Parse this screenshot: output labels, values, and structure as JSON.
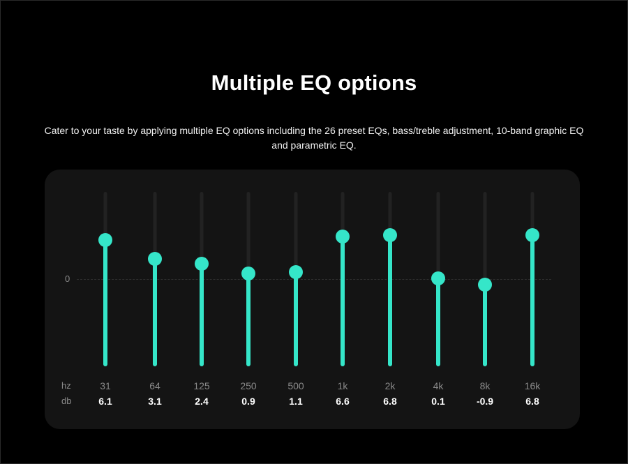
{
  "page": {
    "title": "Multiple EQ options",
    "subtitle": "Cater to your taste by applying multiple EQ options including the 26 preset EQs, bass/treble adjustment, 10-band graphic EQ and parametric EQ."
  },
  "eq": {
    "zero_label": "0",
    "hz_row_label": "hz",
    "db_row_label": "db",
    "accent_color": "#35e6c9",
    "bands": [
      {
        "hz": "31",
        "db": "6.1",
        "gain": 6.1
      },
      {
        "hz": "64",
        "db": "3.1",
        "gain": 3.1
      },
      {
        "hz": "125",
        "db": "2.4",
        "gain": 2.4
      },
      {
        "hz": "250",
        "db": "0.9",
        "gain": 0.9
      },
      {
        "hz": "500",
        "db": "1.1",
        "gain": 1.1
      },
      {
        "hz": "1k",
        "db": "6.6",
        "gain": 6.6
      },
      {
        "hz": "2k",
        "db": "6.8",
        "gain": 6.8
      },
      {
        "hz": "4k",
        "db": "0.1",
        "gain": 0.1
      },
      {
        "hz": "8k",
        "db": "-0.9",
        "gain": -0.9
      },
      {
        "hz": "16k",
        "db": "6.8",
        "gain": 6.8
      }
    ]
  }
}
